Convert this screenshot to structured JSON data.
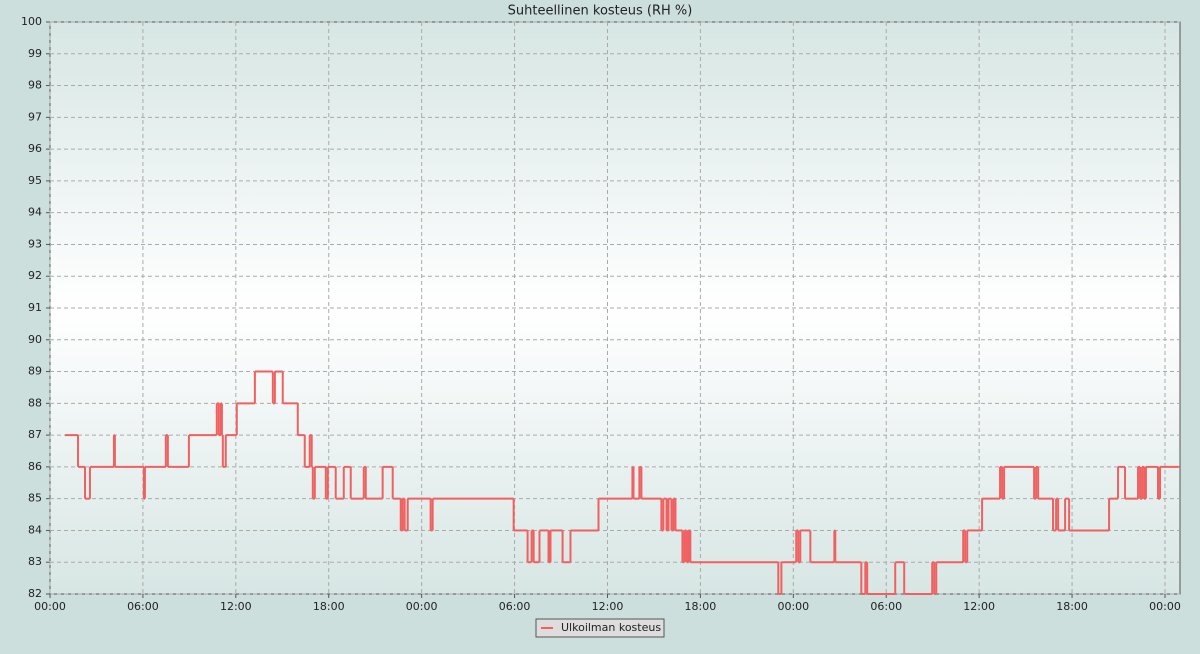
{
  "chart_data": {
    "type": "line",
    "title": "Suhteellinen kosteus (RH %)",
    "x": [
      0.97,
      1.81,
      2.26,
      2.58,
      4.13,
      4.19,
      6.06,
      6.13,
      7.48,
      7.61,
      8.97,
      10.77,
      10.9,
      11.03,
      11.1,
      11.16,
      11.35,
      12.06,
      13.23,
      14.39,
      14.52,
      15.03,
      16.0,
      16.45,
      16.77,
      16.9,
      16.97,
      17.1,
      17.81,
      17.94,
      18.45,
      18.97,
      19.42,
      20.26,
      20.39,
      21.48,
      22.13,
      22.65,
      22.77,
      22.9,
      23.1,
      24.58,
      24.71,
      29.94,
      30.84,
      31.1,
      31.23,
      31.61,
      32.19,
      32.32,
      33.1,
      33.61,
      35.42,
      37.61,
      37.68,
      38.06,
      38.19,
      39.48,
      39.61,
      39.81,
      39.94,
      40.13,
      40.26,
      40.39,
      40.84,
      40.97,
      41.1,
      41.23,
      41.35,
      47.03,
      47.23,
      48.19,
      48.32,
      48.45,
      49.1,
      50.65,
      50.71,
      52.39,
      52.65,
      52.77,
      54.58,
      55.16,
      56.97,
      57.1,
      57.23,
      58.97,
      59.1,
      59.23,
      60.19,
      61.35,
      61.48,
      61.61,
      63.55,
      63.68,
      63.81,
      64.77,
      64.97,
      65.1,
      65.55,
      65.81,
      68.39,
      68.97,
      69.42,
      70.26,
      70.39,
      70.52,
      70.65,
      70.77,
      71.55,
      71.68,
      72.9
    ],
    "series": [
      {
        "name": "Ulkoilman kosteus",
        "color": "#f06060",
        "values": [
          87,
          86,
          85,
          86,
          87,
          86,
          85,
          86,
          87,
          86,
          87,
          88,
          87,
          88,
          87,
          86,
          87,
          88,
          89,
          88,
          89,
          88,
          87,
          86,
          87,
          86,
          85,
          86,
          85,
          86,
          85,
          86,
          85,
          86,
          85,
          86,
          85,
          84,
          85,
          84,
          85,
          84,
          85,
          84,
          83,
          84,
          83,
          84,
          83,
          84,
          83,
          84,
          85,
          86,
          85,
          86,
          85,
          84,
          85,
          84,
          85,
          84,
          85,
          84,
          83,
          84,
          83,
          84,
          83,
          82,
          83,
          84,
          83,
          84,
          83,
          84,
          83,
          82,
          83,
          82,
          83,
          82,
          83,
          82,
          83,
          84,
          83,
          84,
          85,
          86,
          85,
          86,
          85,
          86,
          85,
          84,
          85,
          84,
          85,
          84,
          85,
          86,
          85,
          86,
          85,
          86,
          85,
          86,
          85,
          86,
          86
        ]
      }
    ],
    "xlim": [
      0,
      72.97
    ],
    "ylim": [
      82,
      100
    ],
    "xticks": [
      {
        "value": 0,
        "label": "00:00"
      },
      {
        "value": 6,
        "label": "06:00"
      },
      {
        "value": 12,
        "label": "12:00"
      },
      {
        "value": 18,
        "label": "18:00"
      },
      {
        "value": 24,
        "label": "00:00"
      },
      {
        "value": 30,
        "label": "06:00"
      },
      {
        "value": 36,
        "label": "12:00"
      },
      {
        "value": 42,
        "label": "18:00"
      },
      {
        "value": 48,
        "label": "00:00"
      },
      {
        "value": 54,
        "label": "06:00"
      },
      {
        "value": 60,
        "label": "12:00"
      },
      {
        "value": 66,
        "label": "18:00"
      },
      {
        "value": 72,
        "label": "00:00"
      }
    ],
    "yticks": [
      82,
      83,
      84,
      85,
      86,
      87,
      88,
      89,
      90,
      91,
      92,
      93,
      94,
      95,
      96,
      97,
      98,
      99,
      100
    ],
    "grid": true,
    "step": true,
    "legend": "bottom"
  }
}
